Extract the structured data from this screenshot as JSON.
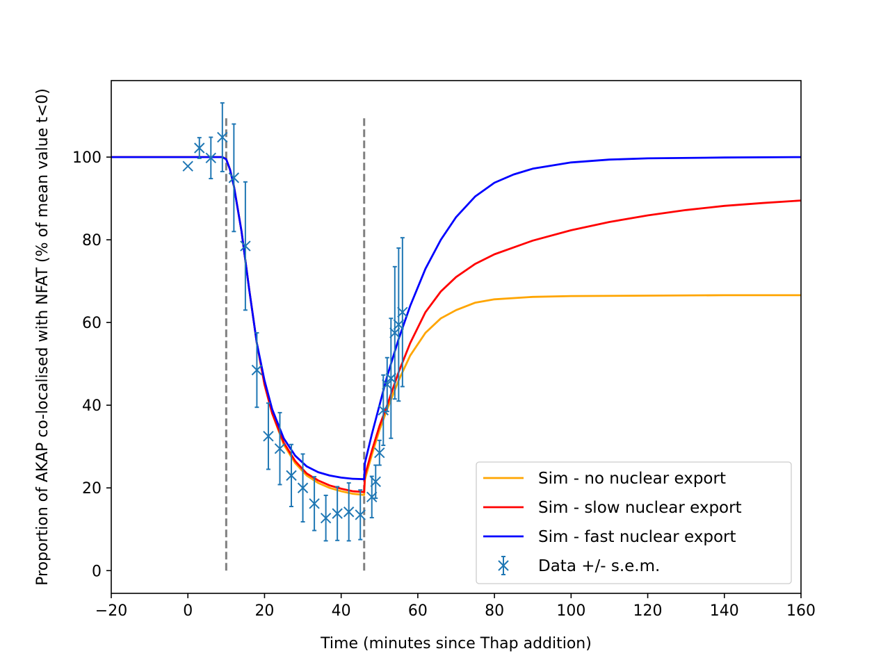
{
  "chart_data": {
    "type": "line",
    "title": "",
    "xlabel": "Time (minutes since Thap addition)",
    "ylabel": "Proportion of AKAP co-localised with NFAT (% of mean value t<0)",
    "xlim": [
      -20,
      160
    ],
    "ylim": [
      -5.5,
      118.5
    ],
    "xticks": [
      -20,
      0,
      20,
      40,
      60,
      80,
      100,
      120,
      140,
      160
    ],
    "yticks": [
      0,
      20,
      40,
      60,
      80,
      100
    ],
    "grid": false,
    "legend_position": "lower right",
    "vlines": [
      {
        "x": 10,
        "ymin": 0,
        "ymax": 110,
        "style": "dashed",
        "color": "#808080"
      },
      {
        "x": 46,
        "ymin": 0,
        "ymax": 110,
        "style": "dashed",
        "color": "#808080"
      }
    ],
    "series": [
      {
        "name": "Sim - no nuclear export",
        "kind": "line",
        "color": "#ffa500",
        "x": [
          -20,
          9,
          10,
          11,
          12,
          14,
          16,
          18,
          20,
          22,
          25,
          28,
          31,
          34,
          37,
          40,
          43,
          46,
          46.2,
          48,
          50,
          52,
          55,
          58,
          62,
          66,
          70,
          75,
          80,
          90,
          100,
          120,
          140,
          160
        ],
        "y": [
          100,
          100,
          99.5,
          97,
          93,
          82,
          68,
          55,
          45,
          38,
          30.5,
          26,
          23,
          21.2,
          20,
          19.2,
          18.6,
          18.3,
          22,
          28,
          34,
          39,
          46,
          52,
          57.5,
          61,
          63,
          64.8,
          65.6,
          66.2,
          66.4,
          66.5,
          66.6,
          66.6
        ]
      },
      {
        "name": "Sim - slow nuclear export",
        "kind": "line",
        "color": "#ff0000",
        "x": [
          -20,
          9,
          10,
          11,
          12,
          14,
          16,
          18,
          20,
          22,
          25,
          28,
          31,
          34,
          37,
          40,
          43,
          46,
          46.2,
          48,
          50,
          52,
          55,
          58,
          62,
          66,
          70,
          75,
          80,
          90,
          100,
          110,
          120,
          130,
          140,
          150,
          160
        ],
        "y": [
          100,
          100,
          99.5,
          97,
          93,
          82,
          68,
          55,
          45,
          38,
          31,
          26.5,
          23.5,
          21.8,
          20.6,
          19.8,
          19.2,
          19,
          23,
          29,
          35,
          40,
          48,
          55,
          62.5,
          67.5,
          71,
          74.2,
          76.5,
          79.8,
          82.3,
          84.3,
          85.9,
          87.2,
          88.2,
          88.9,
          89.5
        ]
      },
      {
        "name": "Sim - fast nuclear export",
        "kind": "line",
        "color": "#0000ff",
        "x": [
          -20,
          9,
          10,
          11,
          12,
          14,
          16,
          18,
          20,
          22,
          25,
          28,
          31,
          34,
          37,
          40,
          43,
          46,
          46.2,
          48,
          50,
          52,
          55,
          58,
          62,
          66,
          70,
          75,
          80,
          85,
          90,
          100,
          110,
          120,
          140,
          160
        ],
        "y": [
          100,
          100,
          99.5,
          97,
          93,
          82,
          68,
          55,
          46,
          39,
          32,
          27.8,
          25.2,
          23.8,
          23,
          22.5,
          22.2,
          22.1,
          26,
          33,
          40,
          47,
          56,
          64,
          73,
          80,
          85.5,
          90.5,
          93.8,
          95.8,
          97.2,
          98.7,
          99.4,
          99.7,
          99.9,
          100
        ]
      },
      {
        "name": "Data +/- s.e.m.",
        "kind": "errorbar",
        "color": "#1f77b4",
        "marker": "x",
        "x": [
          0,
          3,
          6,
          9,
          12,
          15,
          18,
          21,
          24,
          27,
          30,
          33,
          36,
          39,
          42,
          45,
          48,
          49,
          50,
          51,
          52,
          53,
          54,
          55,
          56
        ],
        "y": [
          97.8,
          102.2,
          99.8,
          104.8,
          95.0,
          78.5,
          48.5,
          32.5,
          29.5,
          23.0,
          20.0,
          16.2,
          12.7,
          13.8,
          14.2,
          13.5,
          17.8,
          21.5,
          28.5,
          38.8,
          45.0,
          46.5,
          57.5,
          59.5,
          62.5
        ],
        "err": [
          0,
          2.5,
          5.0,
          8.3,
          13.0,
          15.5,
          9.0,
          8.0,
          8.7,
          7.5,
          8.2,
          6.5,
          5.5,
          6.5,
          7.0,
          6.0,
          5.0,
          4.0,
          3.0,
          8.5,
          6.5,
          14.5,
          16.0,
          18.5,
          18.0
        ]
      }
    ]
  }
}
